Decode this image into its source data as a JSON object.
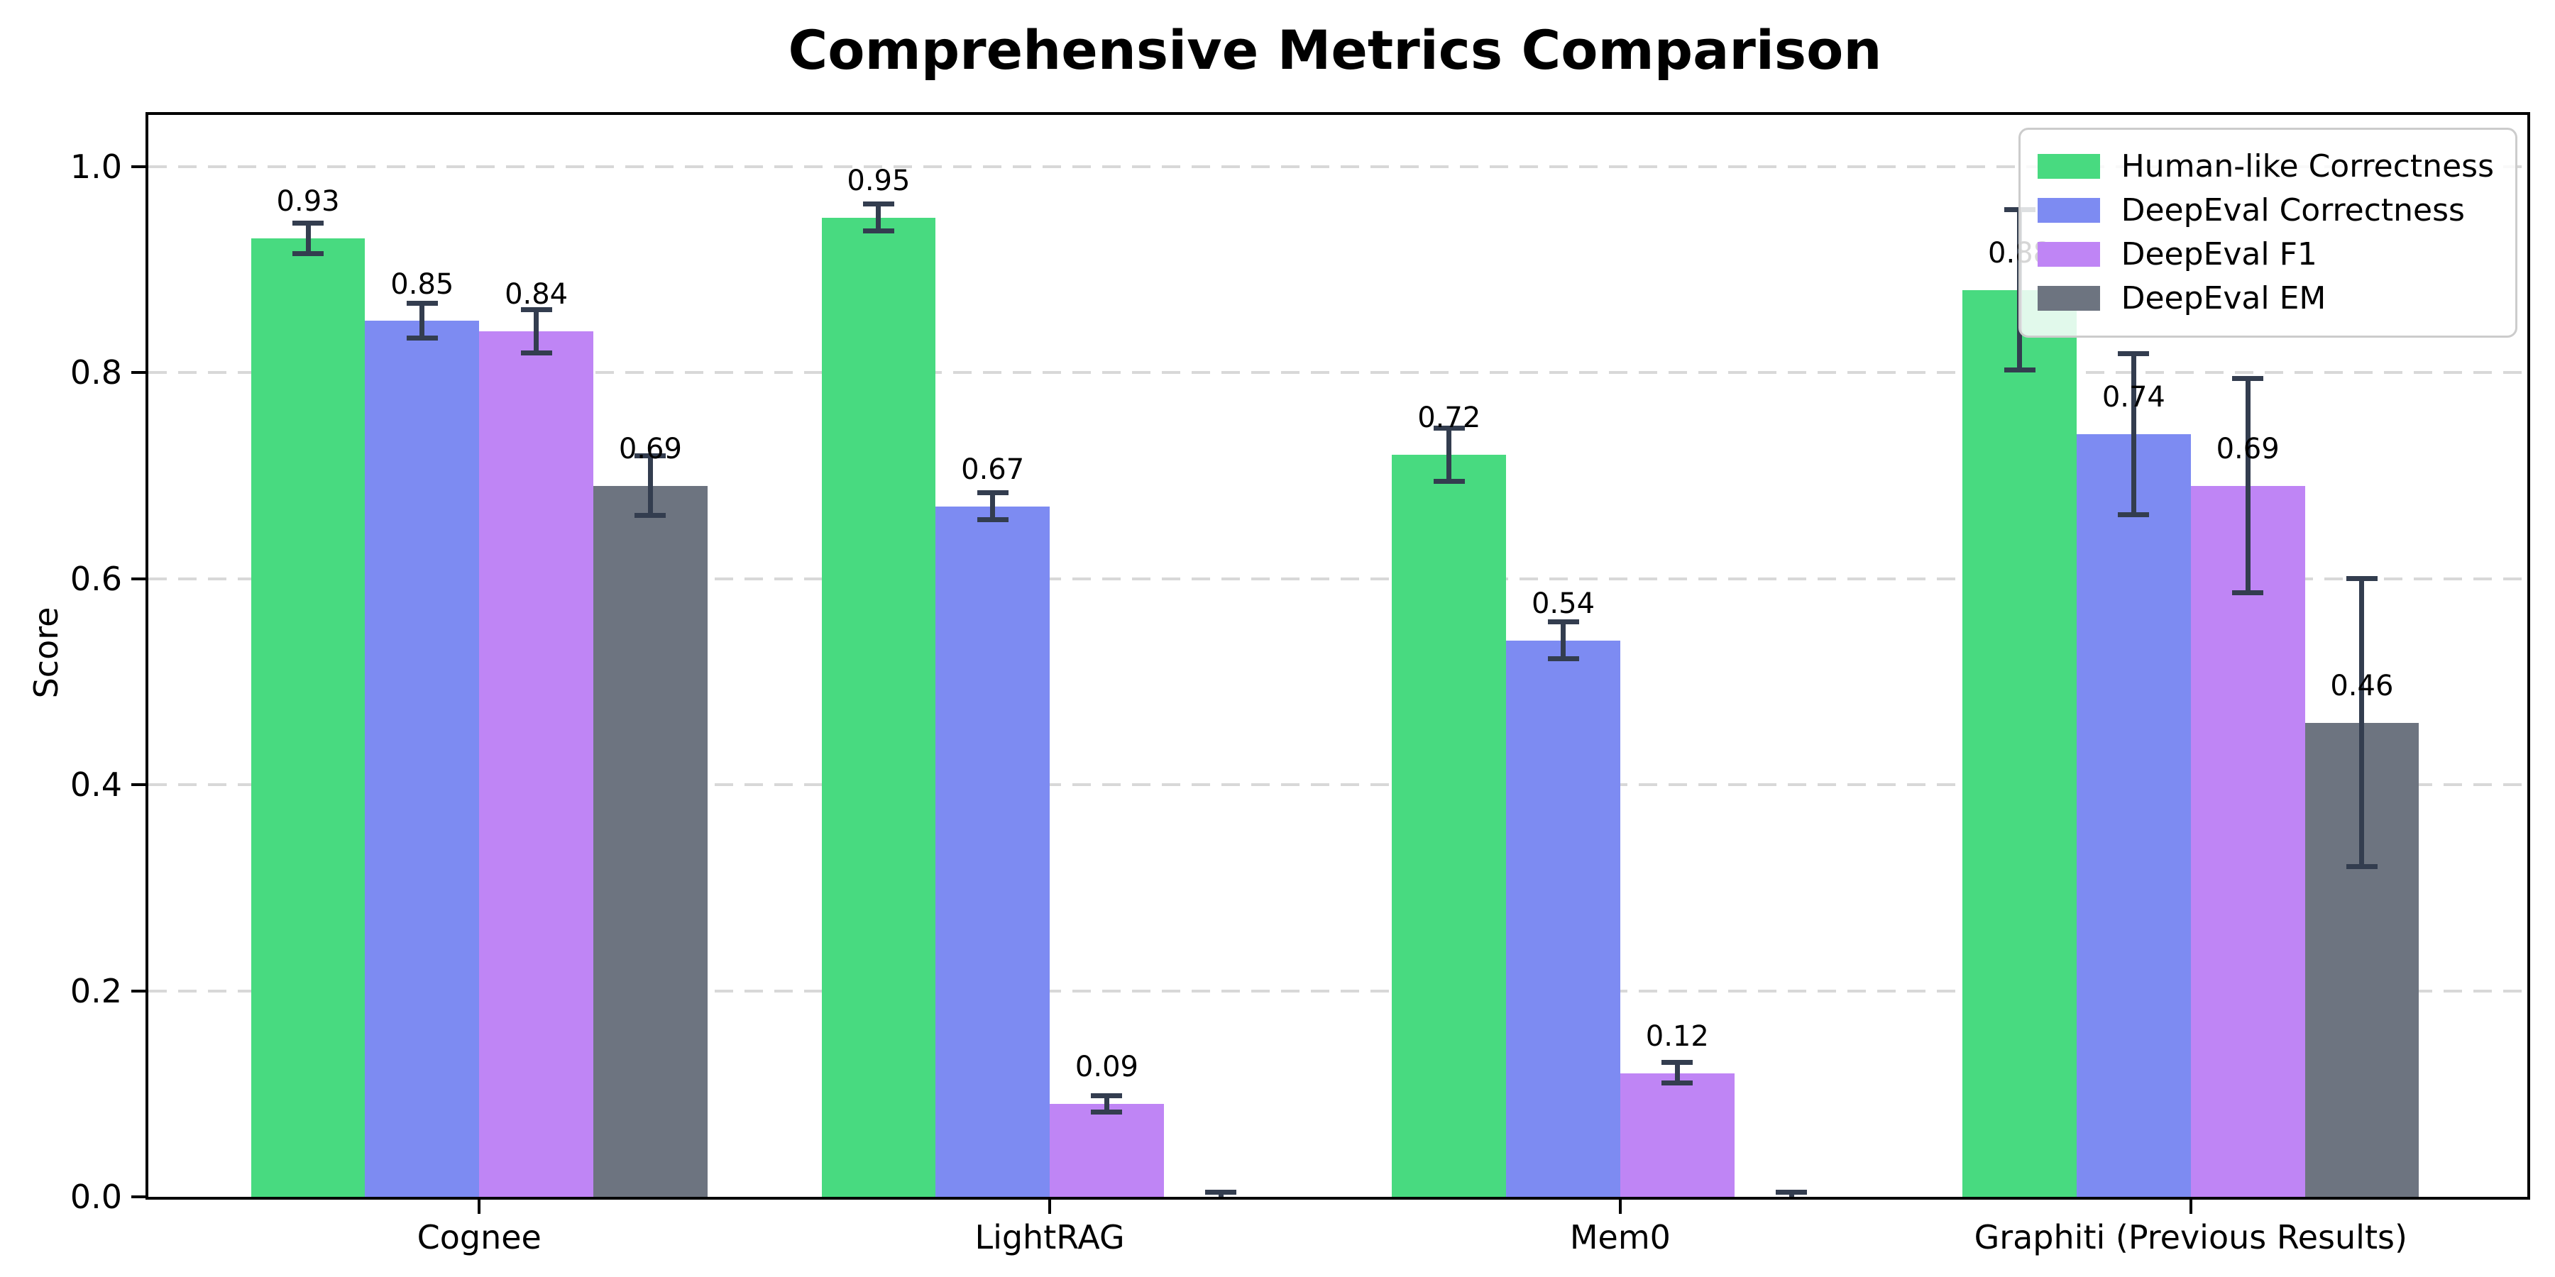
{
  "title": "Comprehensive Metrics Comparison",
  "chart_data": {
    "type": "bar",
    "title": "Comprehensive Metrics Comparison",
    "xlabel": "",
    "ylabel": "Score",
    "categories": [
      "Cognee",
      "LightRAG",
      "Mem0",
      "Graphiti (Previous Results)"
    ],
    "series": [
      {
        "name": "Human-like Correctness",
        "color": "#48da80",
        "values": [
          0.93,
          0.95,
          0.72,
          0.88
        ],
        "errors": [
          0.015,
          0.013,
          0.026,
          0.078
        ],
        "bar_labels": [
          "0.93",
          "0.95",
          "0.72",
          "0.88"
        ]
      },
      {
        "name": "DeepEval Correctness",
        "color": "#7d8bf2",
        "values": [
          0.85,
          0.67,
          0.54,
          0.74
        ],
        "errors": [
          0.017,
          0.013,
          0.018,
          0.078
        ],
        "bar_labels": [
          "0.85",
          "0.67",
          "0.54",
          "0.74"
        ]
      },
      {
        "name": "DeepEval F1",
        "color": "#bf85f5",
        "values": [
          0.84,
          0.09,
          0.12,
          0.69
        ],
        "errors": [
          0.021,
          0.008,
          0.01,
          0.104
        ],
        "bar_labels": [
          "0.84",
          "0.09",
          "0.12",
          "0.69"
        ]
      },
      {
        "name": "DeepEval EM",
        "color": "#6d7480",
        "values": [
          0.69,
          0.0,
          0.0,
          0.46
        ],
        "errors": [
          0.029,
          0.004,
          0.004,
          0.14
        ],
        "bar_labels": [
          "0.69",
          null,
          null,
          "0.46"
        ]
      }
    ],
    "yticks": [
      0.0,
      0.2,
      0.4,
      0.6,
      0.8,
      1.0
    ],
    "ytick_labels": [
      "0.0",
      "0.2",
      "0.4",
      "0.6",
      "0.8",
      "1.0"
    ],
    "ylim": [
      0,
      1.05
    ],
    "xlim": [
      -0.58,
      3.59
    ],
    "bar_width": 0.2,
    "grid": "horizontal-dashed",
    "legend_position": "upper-right",
    "error_bar_color": "#333d4f",
    "label_offset_units": 0.035
  }
}
